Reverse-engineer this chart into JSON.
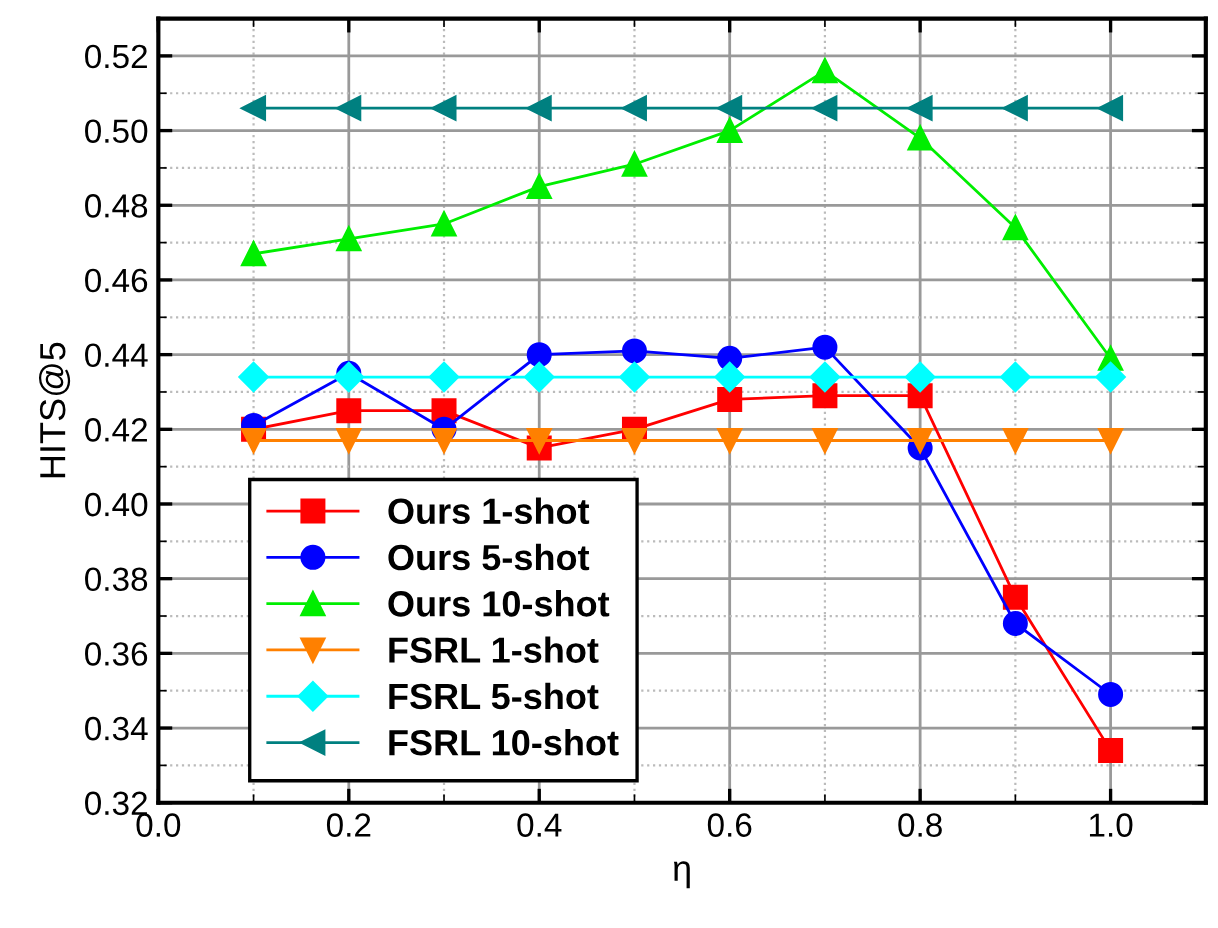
{
  "chart_data": {
    "type": "line",
    "xlabel": "η",
    "ylabel": "HITS@5",
    "x": [
      0.1,
      0.2,
      0.3,
      0.4,
      0.5,
      0.6,
      0.7,
      0.8,
      0.9,
      1.0
    ],
    "xlim": [
      0.0,
      1.1
    ],
    "xticks": [
      {
        "value": 0.0,
        "label": "0.0"
      },
      {
        "value": 0.2,
        "label": "0.2"
      },
      {
        "value": 0.4,
        "label": "0.4"
      },
      {
        "value": 0.6,
        "label": "0.6"
      },
      {
        "value": 0.8,
        "label": "0.8"
      },
      {
        "value": 1.0,
        "label": "1.0"
      }
    ],
    "ylim": [
      0.32,
      0.53
    ],
    "yticks": [
      {
        "value": 0.32,
        "label": "0.32"
      },
      {
        "value": 0.34,
        "label": "0.34"
      },
      {
        "value": 0.36,
        "label": "0.36"
      },
      {
        "value": 0.38,
        "label": "0.38"
      },
      {
        "value": 0.4,
        "label": "0.40"
      },
      {
        "value": 0.42,
        "label": "0.42"
      },
      {
        "value": 0.44,
        "label": "0.44"
      },
      {
        "value": 0.46,
        "label": "0.46"
      },
      {
        "value": 0.48,
        "label": "0.48"
      },
      {
        "value": 0.5,
        "label": "0.50"
      },
      {
        "value": 0.52,
        "label": "0.52"
      }
    ],
    "grid": true,
    "legend": "bottom left",
    "line_style": "solid",
    "series": [
      {
        "name": "Ours 1-shot",
        "color": "#ff0000",
        "marker": "square",
        "values": [
          0.42,
          0.425,
          0.425,
          0.415,
          0.42,
          0.428,
          0.429,
          0.429,
          0.375,
          0.334
        ]
      },
      {
        "name": "Ours 5-shot",
        "color": "#0000ff",
        "marker": "circle",
        "values": [
          0.421,
          0.435,
          0.42,
          0.44,
          0.441,
          0.439,
          0.442,
          0.415,
          0.368,
          0.349
        ]
      },
      {
        "name": "Ours 10-shot",
        "color": "#00ee00",
        "marker": "triangle",
        "values": [
          0.467,
          0.471,
          0.475,
          0.485,
          0.491,
          0.5,
          0.516,
          0.498,
          0.474,
          0.439
        ]
      },
      {
        "name": "FSRL 1-shot",
        "color": "#ff8000",
        "marker": "triangle_down",
        "values": [
          0.417,
          0.417,
          0.417,
          0.417,
          0.417,
          0.417,
          0.417,
          0.417,
          0.417,
          0.417
        ]
      },
      {
        "name": "FSRL 5-shot",
        "color": "#00ffff",
        "marker": "diamond",
        "values": [
          0.434,
          0.434,
          0.434,
          0.434,
          0.434,
          0.434,
          0.434,
          0.434,
          0.434,
          0.434
        ]
      },
      {
        "name": "FSRL 10-shot",
        "color": "#008080",
        "marker": "triangle_left",
        "values": [
          0.506,
          0.506,
          0.506,
          0.506,
          0.506,
          0.506,
          0.506,
          0.506,
          0.506,
          0.506
        ]
      }
    ]
  }
}
